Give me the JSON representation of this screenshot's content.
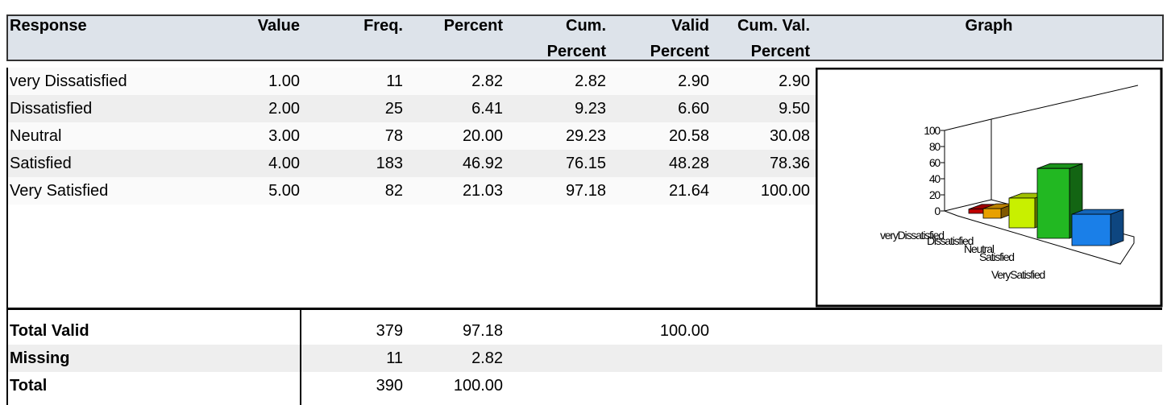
{
  "header": [
    [
      "Response"
    ],
    [
      "Value"
    ],
    [
      "Freq."
    ],
    [
      "Percent"
    ],
    [
      "Cum.",
      "Percent"
    ],
    [
      "Valid",
      "Percent"
    ],
    [
      "Cum. Val.",
      "Percent"
    ],
    [
      "Graph"
    ]
  ],
  "rows": [
    [
      "very Dissatisfied",
      "1.00",
      "11",
      "2.82",
      "2.82",
      "2.90",
      "2.90"
    ],
    [
      "Dissatisfied",
      "2.00",
      "25",
      "6.41",
      "9.23",
      "6.60",
      "9.50"
    ],
    [
      "Neutral",
      "3.00",
      "78",
      "20.00",
      "29.23",
      "20.58",
      "30.08"
    ],
    [
      "Satisfied",
      "4.00",
      "183",
      "46.92",
      "76.15",
      "48.28",
      "78.36"
    ],
    [
      "Very Satisfied",
      "5.00",
      "82",
      "21.03",
      "97.18",
      "21.64",
      "100.00"
    ]
  ],
  "summary": [
    {
      "label": "Total Valid",
      "freq": "379",
      "percent": "97.18",
      "valid_percent": "100.00"
    },
    {
      "label": "Missing",
      "freq": "11",
      "percent": "2.82"
    },
    {
      "label": "Total",
      "freq": "390",
      "percent": "100.00"
    }
  ],
  "chart": {
    "type": "bar3d",
    "categories": [
      "veryDissatisfied",
      "Dissatisfied",
      "Neutral",
      "Satisfied",
      "VerySatisfied"
    ],
    "colors": [
      "#c00000",
      "#e8a000",
      "#c8f000",
      "#22b822",
      "#1a7fe8"
    ],
    "ylim": [
      0,
      100
    ],
    "yticks": [
      0,
      20,
      40,
      60,
      80,
      100
    ]
  }
}
